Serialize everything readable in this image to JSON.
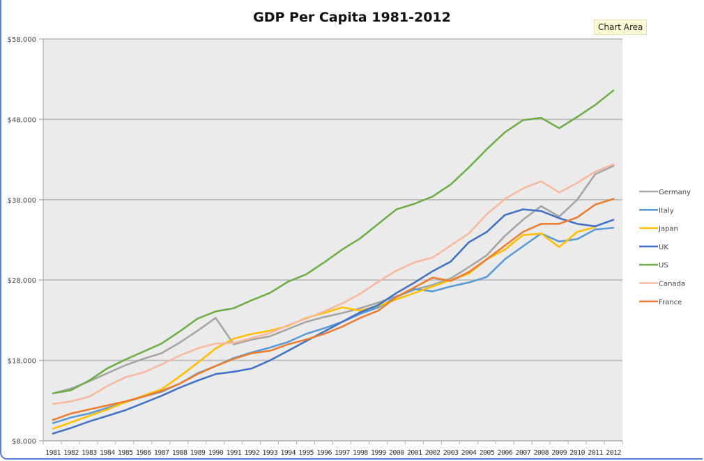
{
  "tooltip": "Chart Area",
  "chart_data": {
    "type": "line",
    "title": "GDP Per Capita 1981-2012",
    "xlabel": "",
    "ylabel": "",
    "ylim": [
      8000,
      58000
    ],
    "yticks": [
      8000,
      18000,
      28000,
      38000,
      48000,
      58000
    ],
    "ytick_labels": [
      "$8,000",
      "$18,000",
      "$28,000",
      "$38,000",
      "$48,000",
      "$58,000"
    ],
    "grid": true,
    "legend_position": "right",
    "x": [
      "1981",
      "1982",
      "1983",
      "1984",
      "1985",
      "1986",
      "1987",
      "1988",
      "1989",
      "1990",
      "1991",
      "1992",
      "1993",
      "1994",
      "1995",
      "1996",
      "1997",
      "1998",
      "1999",
      "2000",
      "2001",
      "2002",
      "2003",
      "2004",
      "2005",
      "2006",
      "2007",
      "2008",
      "2009",
      "2010",
      "2011",
      "2012"
    ],
    "series": [
      {
        "name": "Germany",
        "color": "#a5a5a5",
        "values": [
          13900,
          14500,
          15400,
          16400,
          17400,
          18200,
          18900,
          20200,
          21700,
          23300,
          20000,
          20600,
          21000,
          21900,
          22800,
          23400,
          23900,
          24500,
          25200,
          26000,
          26800,
          27400,
          28200,
          29600,
          31100,
          33500,
          35500,
          37200,
          35900,
          38000,
          41200,
          42200
        ]
      },
      {
        "name": "Italy",
        "color": "#5b9bd5",
        "values": [
          10200,
          10900,
          11400,
          12100,
          12800,
          13500,
          14100,
          15100,
          16400,
          17300,
          18300,
          19000,
          19600,
          20300,
          21300,
          22000,
          22800,
          23800,
          24600,
          25900,
          26900,
          26600,
          27200,
          27700,
          28400,
          30600,
          32200,
          33800,
          32800,
          33100,
          34300,
          34500
        ]
      },
      {
        "name": "Japan",
        "color": "#ffc000",
        "values": [
          9500,
          10300,
          11100,
          11900,
          12800,
          13600,
          14400,
          16000,
          17700,
          19500,
          20700,
          21300,
          21700,
          22300,
          23300,
          23900,
          24600,
          24200,
          24800,
          25600,
          26400,
          27200,
          28000,
          28800,
          30600,
          31800,
          33600,
          33800,
          32100,
          34000,
          34600,
          null
        ]
      },
      {
        "name": "UK",
        "color": "#4472c4",
        "values": [
          8900,
          9600,
          10400,
          11100,
          11800,
          12700,
          13600,
          14600,
          15500,
          16300,
          16600,
          17000,
          18000,
          19200,
          20400,
          21600,
          22800,
          24000,
          24900,
          26400,
          27700,
          29100,
          30300,
          32700,
          34000,
          36100,
          36800,
          36600,
          35700,
          35000,
          34700,
          35500
        ]
      },
      {
        "name": "US",
        "color": "#70ad47",
        "values": [
          13900,
          14300,
          15500,
          17000,
          18100,
          19100,
          20100,
          21600,
          23200,
          24100,
          24500,
          25500,
          26400,
          27800,
          28700,
          30200,
          31800,
          33200,
          35000,
          36800,
          37500,
          38400,
          39900,
          42000,
          44300,
          46400,
          47900,
          48200,
          46900,
          48300,
          49800,
          51600
        ]
      },
      {
        "name": "Canada",
        "color": "#f8b9a0",
        "values": [
          12600,
          12900,
          13500,
          14800,
          15900,
          16500,
          17500,
          18600,
          19500,
          20100,
          20200,
          20800,
          21400,
          22400,
          23200,
          24100,
          25100,
          26300,
          27800,
          29200,
          30200,
          30800,
          32300,
          33800,
          36200,
          38100,
          39400,
          40300,
          38900,
          40100,
          41500,
          42400
        ]
      },
      {
        "name": "France",
        "color": "#ed7d31",
        "values": [
          10600,
          11400,
          11900,
          12400,
          12900,
          13500,
          14200,
          15100,
          16300,
          17300,
          18200,
          18900,
          19200,
          20000,
          20600,
          21300,
          22200,
          23300,
          24200,
          25900,
          27100,
          28300,
          27900,
          29000,
          30600,
          32300,
          34000,
          35000,
          35000,
          35800,
          37400,
          38100
        ]
      }
    ]
  }
}
